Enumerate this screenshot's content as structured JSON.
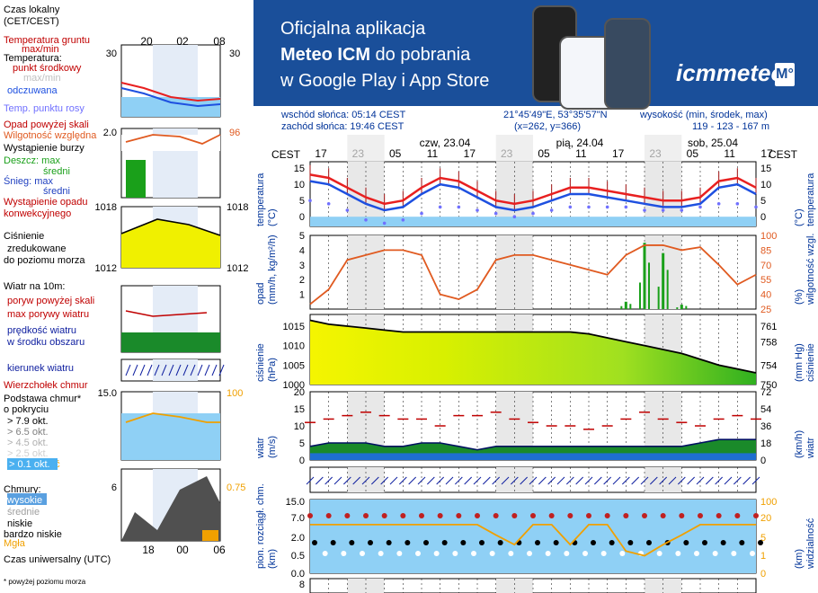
{
  "banner": {
    "line1": "Oficjalna aplikacja",
    "line2_bold": "Meteo ICM",
    "line2_rest": " do pobrania",
    "line3": "w Google Play i App Store",
    "logo": "icmmeteo",
    "badge": "M°"
  },
  "info": {
    "sunrise": "wschód słońca: 05:14 CEST",
    "sunset": "zachód słońca: 19:46 CEST",
    "coords": "21°45'49\"E, 53°35'57\"N",
    "grid": "(x=262,  y=366)",
    "elev_label": "wysokość (min, środek, max)",
    "elev_values": "119 - 123 - 167 m"
  },
  "timeline": {
    "tz": "CEST",
    "days": [
      "czw, 23.04",
      "pią, 24.04",
      "sob, 25.04"
    ],
    "hours": [
      "17",
      "23",
      "05",
      "11",
      "17",
      "23",
      "05",
      "11",
      "17",
      "23",
      "05",
      "11",
      "17"
    ]
  },
  "legend": {
    "local_time": "Czas lokalny",
    "local_time2": "(CET/CEST)",
    "leg_hours": [
      "20",
      "02",
      "08"
    ],
    "ground_temp": "Temperatura gruntu",
    "ground_temp2": "max/min",
    "temperature": "Temperatura:",
    "mid_point": "punkt środkowy",
    "max_min": "max/min",
    "feels": "odczuwana",
    "dew": "Temp. punktu rosy",
    "precip_over": "Opad powyżej skali",
    "humidity": "Wilgotność względna",
    "storm": "Wystąpienie burzy",
    "rain": "Deszcz:",
    "snow": "Śnieg:",
    "max": "max",
    "mean": "średni",
    "precip_occ": "Wystąpienie opadu",
    "convective": "konwekcyjnego",
    "pressure1": "Ciśnienie",
    "pressure2": "zredukowane",
    "pressure3": "do poziomu morza",
    "wind10": "Wiatr na 10m:",
    "gust_over": "poryw powyżej skali",
    "gust_max": "max porywy wiatru",
    "wind_speed": "prędkość wiatru",
    "wind_center": "w środku obszaru",
    "wind_dir": "kierunek wiatru",
    "cloud_top": "Wierzchołek chmur",
    "cloud_base": "Podstawa chmur*",
    "coverage": "o pokryciu",
    "okt": [
      "> 7.9 okt.",
      "> 6.5 okt.",
      "> 4.5 okt.",
      "> 2.5 okt.",
      "> 0.1 okt."
    ],
    "visibility": "Widzialność",
    "clouds": "Chmury:",
    "high": "wysokie",
    "medium": "średnie",
    "low": "niskie",
    "very_low": "bardzo niskie",
    "fog": "Mgła",
    "utc": "Czas uniwersalny (UTC)",
    "utc_hours": [
      "18",
      "00",
      "06"
    ],
    "footnote": "* powyżej poziomu morza"
  },
  "axes": {
    "temp_left": "temperatura",
    "temp_left2": "(°C)",
    "temp_right": "temperatura",
    "temp_right2": "(°C)",
    "precip_left": "opad",
    "precip_left2": "(mm/h, kg/m²/h)",
    "precip_right": "wilgotność wzgl.",
    "precip_right2": "(%)",
    "press_left": "ciśnienie",
    "press_left2": "(hPa)",
    "press_right": "ciśnienie",
    "press_right2": "(mm Hg)",
    "wind_left": "wiatr",
    "wind_left2": "(m/s)",
    "wind_right": "wiatr",
    "wind_right2": "(km/h)",
    "cloud_left": "pion. rozciągł. chm.",
    "cloud_left2": "(km)",
    "cloud_right": "widzialność",
    "cloud_right2": "(km)",
    "temp_ticks": [
      "15",
      "10",
      "5",
      "0"
    ],
    "precip_ticks": [
      "5",
      "4",
      "3",
      "2",
      "1"
    ],
    "hum_ticks": [
      "100",
      "85",
      "70",
      "55",
      "40",
      "25"
    ],
    "press_ticks": [
      "1015",
      "1010",
      "1005",
      "1000"
    ],
    "mmhg_ticks": [
      "761",
      "758",
      "754",
      "750"
    ],
    "wind_ticks": [
      "20",
      "15",
      "10",
      "5",
      "0"
    ],
    "kmh_ticks": [
      "72",
      "54",
      "36",
      "18",
      "0"
    ],
    "cloud_ticks": [
      "15.0",
      "7.0",
      "2.0",
      "0.5",
      "0.0"
    ],
    "vis_ticks": [
      "100",
      "20",
      "5",
      "1",
      "0"
    ],
    "bottom_tick": "8"
  },
  "colors": {
    "temp": "#e82020",
    "feels": "#1e50e0",
    "dew": "#7070ff",
    "humidity": "#e05a20",
    "rain": "#1aa01a",
    "pressure": "#f0f000",
    "wind": "#0a7a1a",
    "gust": "#c00000",
    "vis": "#f0a000"
  },
  "chart_data": {
    "type": "line",
    "x_hours_from_start": [
      0,
      3,
      6,
      9,
      12,
      15,
      18,
      21,
      24,
      27,
      30,
      33,
      36,
      39,
      42,
      45,
      48,
      51,
      54,
      57,
      60,
      63,
      66,
      69,
      72
    ],
    "temperature": [
      13,
      12,
      9,
      6,
      4,
      5,
      9,
      12,
      11,
      8,
      5,
      4,
      5,
      7,
      9,
      9,
      8,
      7,
      6,
      5,
      5,
      6,
      11,
      12,
      9
    ],
    "feels": [
      11,
      10,
      7,
      4,
      2,
      3,
      7,
      10,
      9,
      6,
      3,
      2,
      3,
      5,
      7,
      7,
      6,
      5,
      4,
      3,
      3,
      4,
      9,
      10,
      7
    ],
    "dew_point": [
      5,
      4,
      2,
      -1,
      -2,
      -1,
      1,
      3,
      3,
      2,
      1,
      0,
      1,
      2,
      3,
      3,
      3,
      3,
      2,
      2,
      2,
      3,
      4,
      4,
      3
    ],
    "humidity": [
      30,
      45,
      75,
      80,
      85,
      85,
      80,
      40,
      35,
      45,
      75,
      80,
      80,
      75,
      70,
      65,
      60,
      80,
      90,
      90,
      85,
      88,
      70,
      50,
      60
    ],
    "precip_bars": [
      0,
      0,
      0,
      0,
      0,
      0,
      0,
      0,
      0,
      0,
      0,
      0,
      0,
      0,
      0,
      0,
      0,
      0.5,
      4.5,
      3.8,
      0.3,
      0,
      0,
      0,
      0
    ],
    "pressure": [
      1016.5,
      1015.5,
      1015,
      1014.5,
      1014,
      1013.5,
      1013.5,
      1013.5,
      1013.5,
      1013.5,
      1013.5,
      1013.5,
      1013.5,
      1013.5,
      1013.5,
      1013,
      1012,
      1011,
      1010,
      1009,
      1008,
      1006.5,
      1005,
      1004,
      1003
    ],
    "wind": [
      4,
      5,
      5,
      5,
      4,
      4,
      5,
      5,
      4,
      3,
      4,
      4,
      4,
      4,
      4,
      4,
      4,
      4,
      4,
      4,
      4,
      5,
      6,
      6,
      6
    ],
    "gust": [
      11,
      12,
      13,
      14,
      13,
      12,
      12,
      10,
      13,
      13,
      14,
      12,
      11,
      10,
      10,
      9,
      10,
      12,
      14,
      12,
      11,
      10,
      12,
      13,
      12
    ],
    "visibility_km": [
      20,
      20,
      20,
      20,
      20,
      20,
      20,
      20,
      20,
      20,
      10,
      5,
      20,
      20,
      5,
      20,
      20,
      3,
      2,
      5,
      10,
      20,
      20,
      20,
      20
    ]
  }
}
